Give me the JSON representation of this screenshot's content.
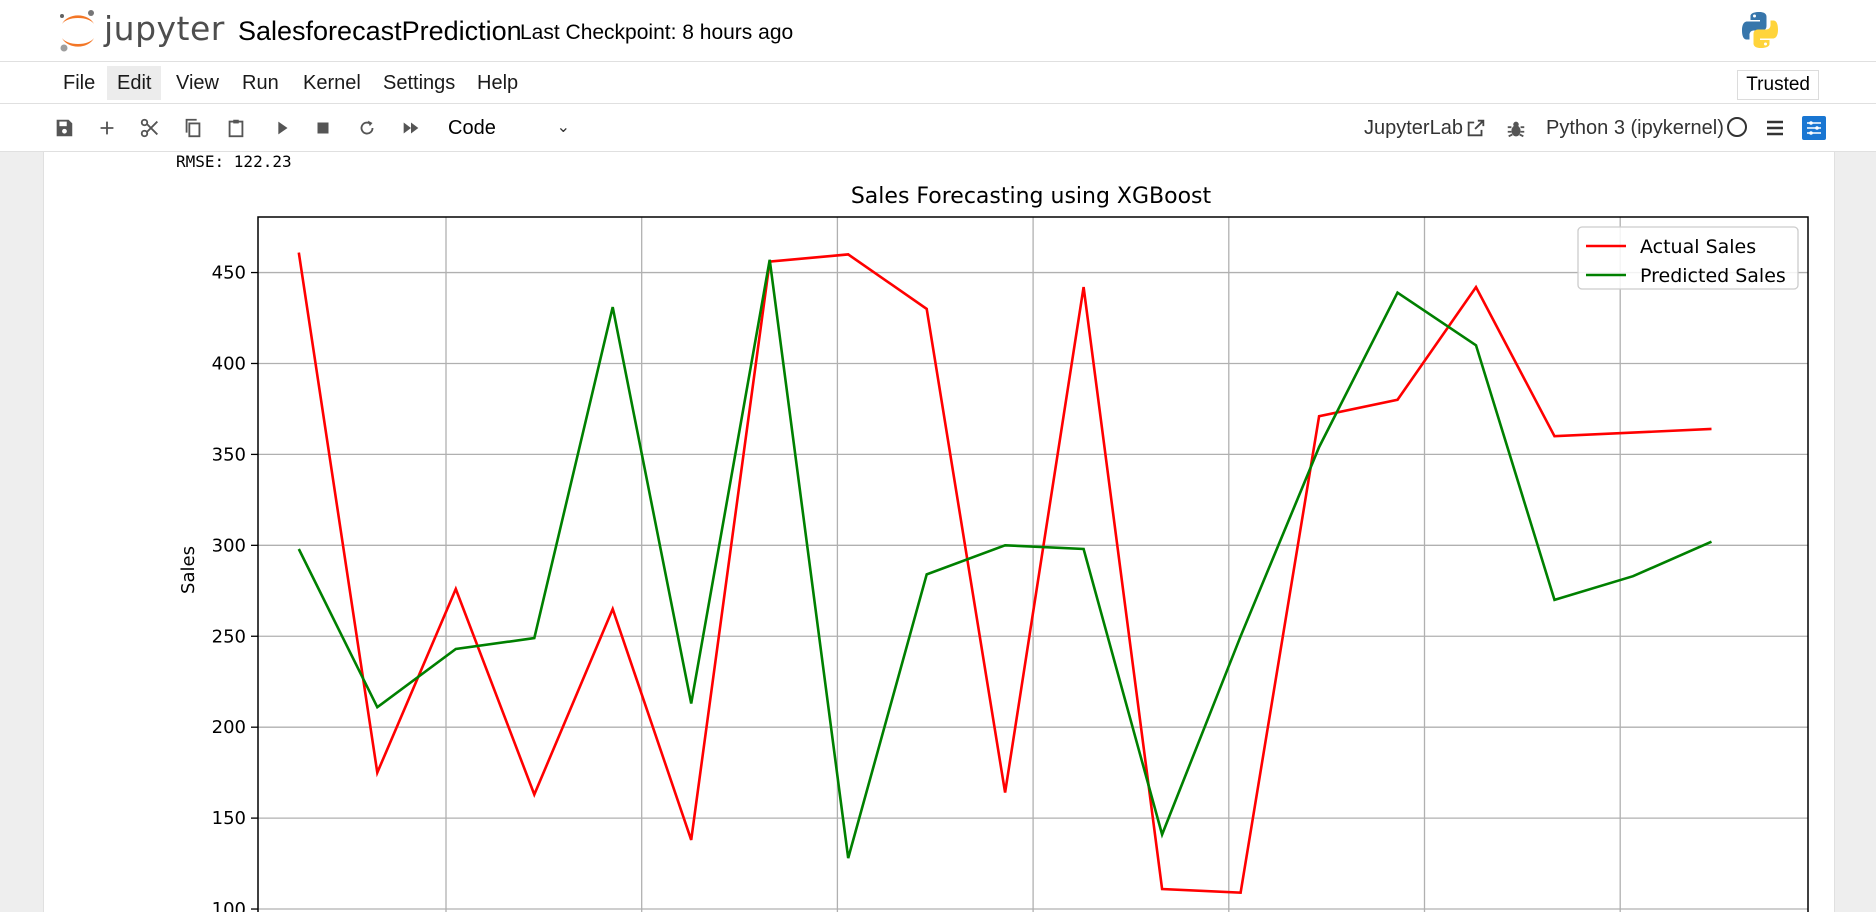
{
  "header": {
    "logo_text": "jupyter",
    "notebook_title": "SalesforecastPrediction",
    "checkpoint": "Last Checkpoint: 8 hours ago"
  },
  "menu": {
    "items": [
      "File",
      "Edit",
      "View",
      "Run",
      "Kernel",
      "Settings",
      "Help"
    ],
    "active": "Edit",
    "trusted": "Trusted"
  },
  "toolbar": {
    "cell_type": "Code",
    "jupyterlab_link": "JupyterLab",
    "kernel_name": "Python 3 (ipykernel)"
  },
  "output": {
    "rmse_text": "RMSE: 122.23"
  },
  "chart_data": {
    "type": "line",
    "title": "Sales Forecasting using XGBoost",
    "xlabel": "",
    "ylabel": "Sales",
    "ylim_visible": [
      100,
      480
    ],
    "yticks": [
      100,
      150,
      200,
      250,
      300,
      350,
      400,
      450
    ],
    "grid": true,
    "legend_position": "top-right",
    "x": [
      0,
      1,
      2,
      3,
      4,
      5,
      6,
      7,
      8,
      9,
      10,
      11,
      12,
      13,
      14,
      15,
      16,
      17,
      18
    ],
    "series": [
      {
        "name": "Actual Sales",
        "color": "#ff0000",
        "values": [
          461,
          175,
          276,
          163,
          265,
          138,
          456,
          460,
          430,
          164,
          442,
          111,
          109,
          371,
          380,
          442,
          360,
          362,
          364
        ]
      },
      {
        "name": "Predicted Sales",
        "color": "#008000",
        "values": [
          298,
          211,
          243,
          249,
          431,
          213,
          457,
          128,
          284,
          300,
          298,
          141,
          250,
          354,
          439,
          410,
          270,
          283,
          302
        ]
      }
    ]
  }
}
